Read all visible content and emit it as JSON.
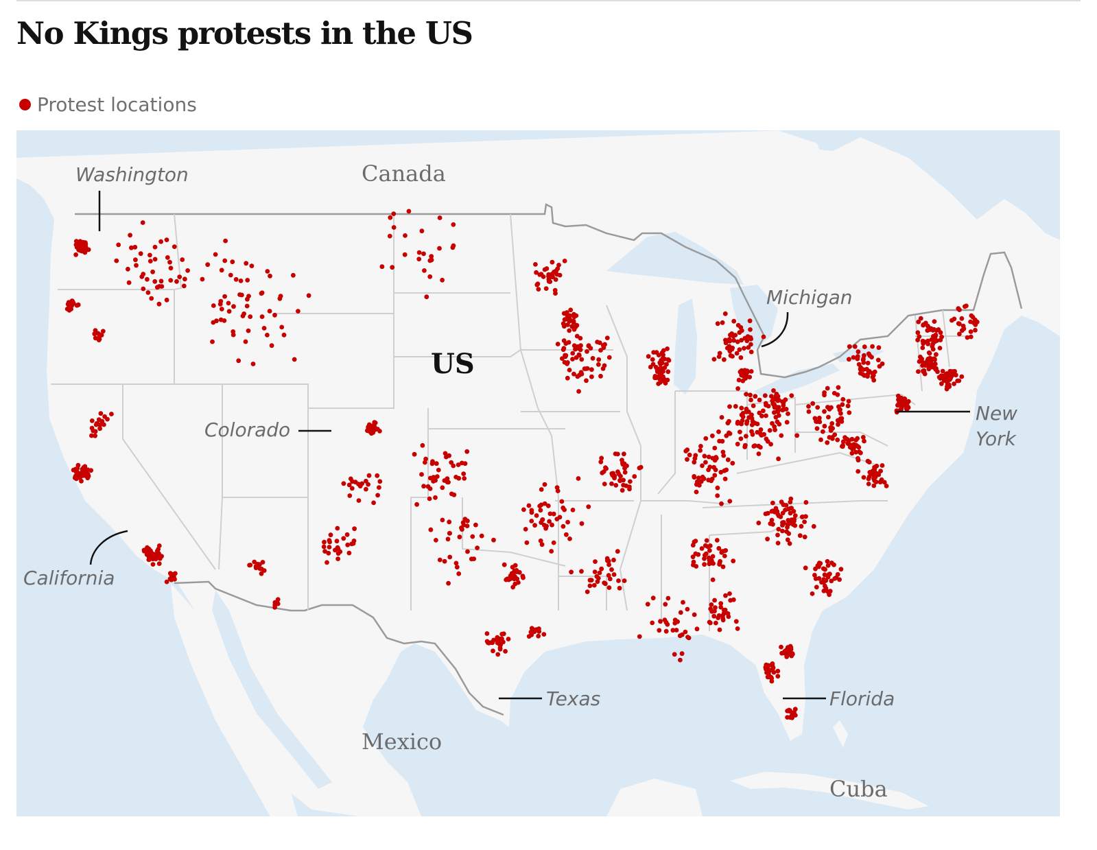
{
  "title": "No Kings protests in the US",
  "legend": {
    "label": "Protest locations",
    "color": "#c70000"
  },
  "colors": {
    "water": "#dbe9f5",
    "land": "#f6f6f6",
    "border": "#9a9a9a",
    "state_line": "#cfcfcf",
    "dot": "#c70000"
  },
  "map": {
    "countries": {
      "canada": "Canada",
      "us": "US",
      "mexico": "Mexico",
      "cuba": "Cuba"
    },
    "states": {
      "washington": "Washington",
      "california": "California",
      "colorado": "Colorado",
      "texas": "Texas",
      "michigan": "Michigan",
      "new_york_1": "New",
      "new_york_2": "York",
      "florida": "Florida"
    }
  }
}
